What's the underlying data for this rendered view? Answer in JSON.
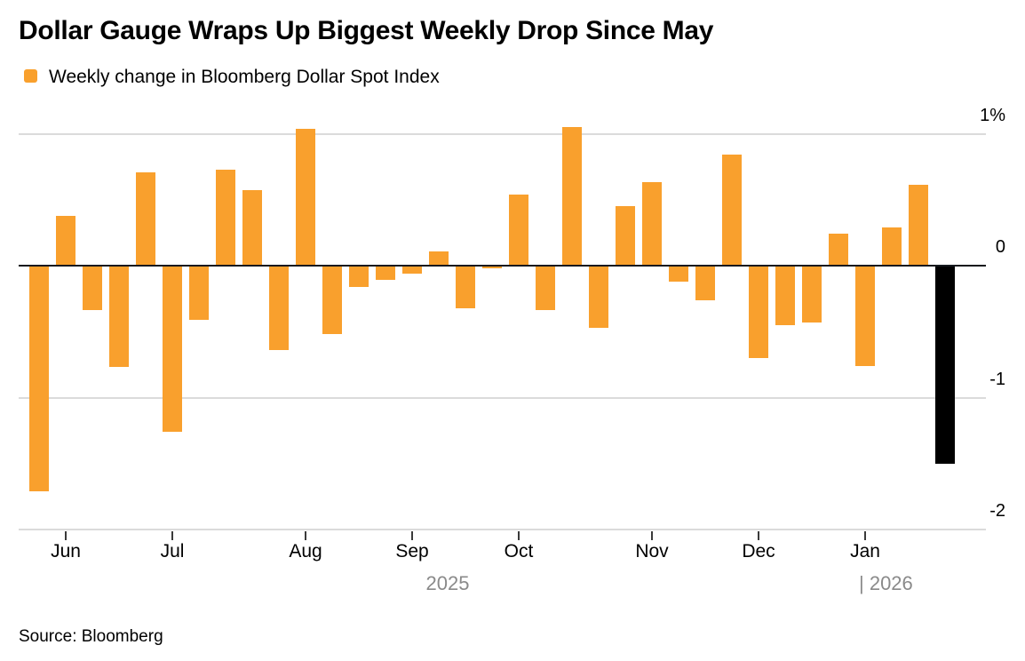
{
  "title": "Dollar Gauge Wraps Up Biggest Weekly Drop Since May",
  "legend": {
    "label": "Weekly change in Bloomberg Dollar Spot Index",
    "swatch_color": "#F9A02D"
  },
  "source": "Source: Bloomberg",
  "colors": {
    "bar": "#F9A02D",
    "highlight_bar": "#000000",
    "gridline": "#DBDBDB",
    "zero_line": "#14181D",
    "year_text": "#8A8A8A"
  },
  "chart_data": {
    "type": "bar",
    "title": "Dollar Gauge Wraps Up Biggest Weekly Drop Since May",
    "series_name": "Weekly change in Bloomberg Dollar Spot Index",
    "unit": "%",
    "grid": "horizontal",
    "legend_position": "top-left",
    "ylim": [
      -2,
      1
    ],
    "values": [
      -1.71,
      0.38,
      -0.34,
      -0.77,
      0.71,
      -1.26,
      -0.41,
      0.73,
      0.57,
      -0.64,
      1.04,
      -0.52,
      -0.16,
      -0.11,
      -0.06,
      0.11,
      -0.32,
      -0.02,
      0.54,
      -0.34,
      1.05,
      -0.47,
      0.45,
      0.63,
      -0.12,
      -0.26,
      0.84,
      -0.7,
      -0.45,
      -0.43,
      0.24,
      -0.76,
      0.29,
      0.61,
      -1.5
    ],
    "highlight_last_bar": true,
    "highlight_note": "final week shown in black (biggest weekly drop since May)",
    "y_axis": {
      "ticks": [
        {
          "label": "1%",
          "value": 1
        },
        {
          "label": "0",
          "value": 0
        },
        {
          "label": "-1",
          "value": -1
        },
        {
          "label": "-2",
          "value": -2
        }
      ]
    },
    "x_axis": {
      "months": [
        {
          "label": "Jun",
          "bar_index": 1
        },
        {
          "label": "Jul",
          "bar_index": 5
        },
        {
          "label": "Aug",
          "bar_index": 10
        },
        {
          "label": "Sep",
          "bar_index": 14
        },
        {
          "label": "Oct",
          "bar_index": 18
        },
        {
          "label": "Nov",
          "bar_index": 23
        },
        {
          "label": "Dec",
          "bar_index": 27
        },
        {
          "label": "Jan",
          "bar_index": 31
        }
      ],
      "years": [
        {
          "label": "2025"
        },
        {
          "label": "| 2026"
        }
      ]
    }
  }
}
